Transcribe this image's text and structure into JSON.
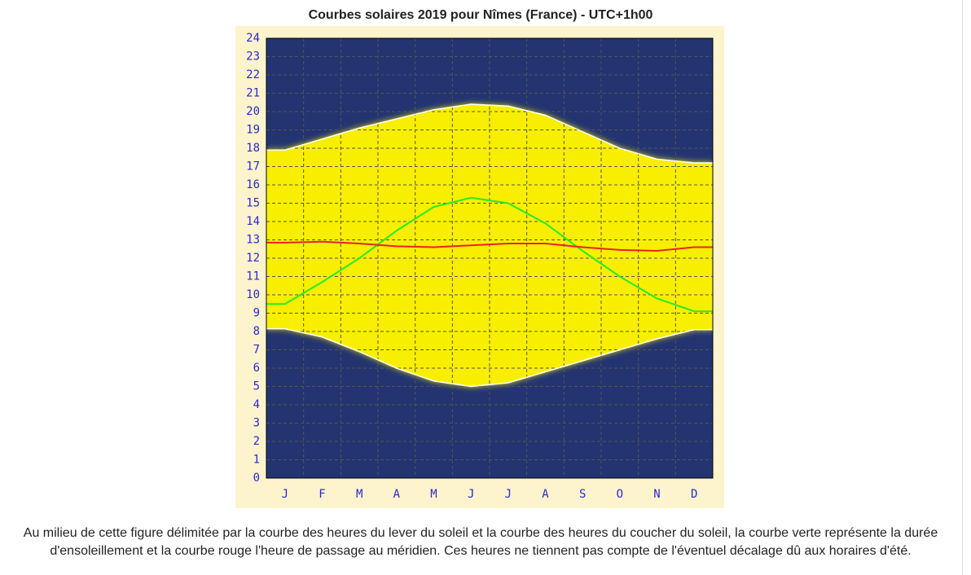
{
  "chart_data": {
    "type": "line",
    "title": "Courbes solaires 2019 pour Nîmes (France) - UTC+1h00",
    "categories": [
      "J",
      "F",
      "M",
      "A",
      "M",
      "J",
      "J",
      "A",
      "S",
      "O",
      "N",
      "D"
    ],
    "ylim": [
      0,
      24
    ],
    "yticks": [
      0,
      1,
      2,
      3,
      4,
      5,
      6,
      7,
      8,
      9,
      10,
      11,
      12,
      13,
      14,
      15,
      16,
      17,
      18,
      19,
      20,
      21,
      22,
      23,
      24
    ],
    "grid": true,
    "series": [
      {
        "color": "#ffffff",
        "values": [
          8.15,
          7.7,
          6.9,
          6.0,
          5.3,
          5.0,
          5.2,
          5.8,
          6.4,
          7.0,
          7.6,
          8.1
        ]
      },
      {
        "color": "#ffffff",
        "values": [
          17.9,
          18.5,
          19.1,
          19.6,
          20.1,
          20.4,
          20.3,
          19.8,
          18.9,
          18.0,
          17.4,
          17.2
        ]
      },
      {
        "color": "#22ee22",
        "values": [
          9.5,
          10.7,
          12.0,
          13.5,
          14.8,
          15.3,
          15.0,
          13.9,
          12.4,
          11.0,
          9.8,
          9.1
        ]
      },
      {
        "color": "#ee2222",
        "values": [
          12.85,
          12.9,
          12.8,
          12.65,
          12.6,
          12.7,
          12.8,
          12.8,
          12.6,
          12.45,
          12.4,
          12.6
        ]
      }
    ]
  },
  "caption": "Au milieu de cette figure délimitée par la courbe des heures du lever du soleil et la courbe des heures du coucher du soleil, la courbe verte représente la durée d'ensoleillement et la courbe rouge l'heure de passage au méridien. Ces heures ne tiennent pas compte de l'éventuel décalage dû aux horaires d'été."
}
